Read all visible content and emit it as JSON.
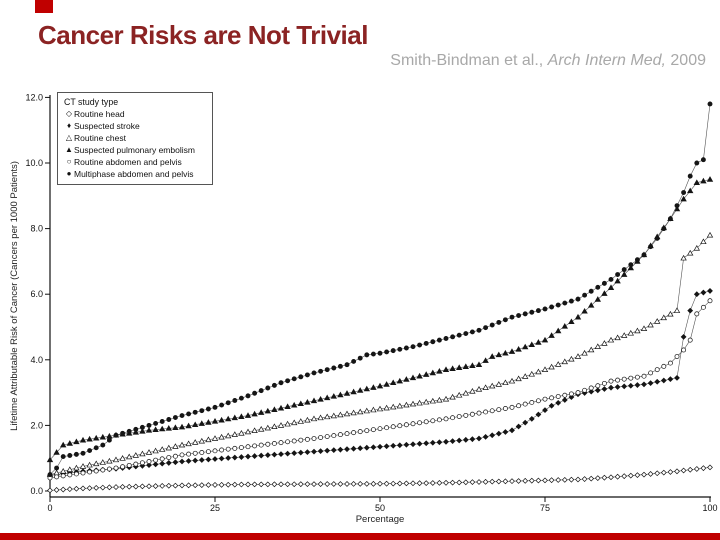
{
  "slide": {
    "title": "Cancer Risks are Not Trivial",
    "title_color": "#8b2323",
    "accent_color": "#c00000",
    "citation": {
      "prefix": "Smith-Bindman et al., ",
      "journal_italic": "Arch Intern Med,",
      "year": " 2009"
    }
  },
  "chart_data": {
    "type": "scatter",
    "title": "",
    "xlabel": "Percentage",
    "ylabel": "Lifetime Attributable Risk of Cancer (Cancers per 1000 Patients)",
    "xlim": [
      0,
      100
    ],
    "ylim": [
      0,
      12
    ],
    "grid": false,
    "legend_title": "CT study type",
    "legend_position": "top-left",
    "x_ticks": [
      {
        "label": "0",
        "value": 0
      },
      {
        "label": "25",
        "value": 25
      },
      {
        "label": "50",
        "value": 50
      },
      {
        "label": "75",
        "value": 75
      },
      {
        "label": "100",
        "value": 100
      }
    ],
    "y_ticks": [
      {
        "label": "12.0",
        "value": 12
      },
      {
        "label": "10.0",
        "value": 10
      },
      {
        "label": "8.0",
        "value": 8
      },
      {
        "label": "6.0",
        "value": 6
      },
      {
        "label": "4.0",
        "value": 4
      },
      {
        "label": "2.0",
        "value": 2
      },
      {
        "label": "0.0",
        "value": 0
      }
    ],
    "series_note": "x = percentage of patients (percentile), y = lifetime attributable risk of cancer per 1000 patients; points are estimates read from the plotted distribution curves",
    "series": [
      {
        "id": "routine-head",
        "name": "Routine head",
        "marker": "diamond",
        "filled": false,
        "glyph": "◇",
        "points": [
          [
            0,
            0.02
          ],
          [
            5,
            0.08
          ],
          [
            10,
            0.12
          ],
          [
            20,
            0.17
          ],
          [
            30,
            0.2
          ],
          [
            40,
            0.21
          ],
          [
            50,
            0.22
          ],
          [
            60,
            0.25
          ],
          [
            70,
            0.3
          ],
          [
            80,
            0.35
          ],
          [
            85,
            0.42
          ],
          [
            90,
            0.5
          ],
          [
            95,
            0.6
          ],
          [
            100,
            0.72
          ]
        ]
      },
      {
        "id": "suspected-stroke",
        "name": "Suspected stroke",
        "marker": "diamond",
        "filled": true,
        "glyph": "♦",
        "points": [
          [
            0,
            0.48
          ],
          [
            5,
            0.6
          ],
          [
            10,
            0.68
          ],
          [
            20,
            0.9
          ],
          [
            30,
            1.05
          ],
          [
            40,
            1.2
          ],
          [
            50,
            1.35
          ],
          [
            60,
            1.5
          ],
          [
            65,
            1.6
          ],
          [
            70,
            1.85
          ],
          [
            73,
            2.2
          ],
          [
            76,
            2.6
          ],
          [
            80,
            2.95
          ],
          [
            85,
            3.15
          ],
          [
            90,
            3.25
          ],
          [
            95,
            3.45
          ],
          [
            96,
            4.7
          ],
          [
            97,
            5.5
          ],
          [
            98,
            6.0
          ],
          [
            100,
            6.1
          ]
        ]
      },
      {
        "id": "routine-chest",
        "name": "Routine chest",
        "marker": "triangle",
        "filled": false,
        "glyph": "△",
        "points": [
          [
            0,
            0.5
          ],
          [
            5,
            0.75
          ],
          [
            10,
            0.95
          ],
          [
            20,
            1.4
          ],
          [
            30,
            1.8
          ],
          [
            40,
            2.2
          ],
          [
            50,
            2.5
          ],
          [
            60,
            2.8
          ],
          [
            65,
            3.1
          ],
          [
            70,
            3.35
          ],
          [
            75,
            3.7
          ],
          [
            80,
            4.1
          ],
          [
            85,
            4.6
          ],
          [
            90,
            4.95
          ],
          [
            95,
            5.5
          ],
          [
            96,
            7.1
          ],
          [
            98,
            7.4
          ],
          [
            100,
            7.8
          ]
        ]
      },
      {
        "id": "suspected-pulmonary-embolism",
        "name": "Suspected pulmonary embolism",
        "marker": "triangle",
        "filled": true,
        "glyph": "▲",
        "points": [
          [
            0,
            0.95
          ],
          [
            2,
            1.4
          ],
          [
            5,
            1.55
          ],
          [
            10,
            1.7
          ],
          [
            15,
            1.85
          ],
          [
            20,
            1.95
          ],
          [
            30,
            2.3
          ],
          [
            40,
            2.75
          ],
          [
            50,
            3.2
          ],
          [
            60,
            3.7
          ],
          [
            65,
            3.85
          ],
          [
            67,
            4.1
          ],
          [
            70,
            4.25
          ],
          [
            75,
            4.6
          ],
          [
            80,
            5.3
          ],
          [
            85,
            6.2
          ],
          [
            90,
            7.2
          ],
          [
            94,
            8.3
          ],
          [
            96,
            8.9
          ],
          [
            98,
            9.4
          ],
          [
            100,
            9.5
          ]
        ]
      },
      {
        "id": "routine-abdomen-pelvis",
        "name": "Routine abdomen and pelvis",
        "marker": "circle",
        "filled": false,
        "glyph": "○",
        "points": [
          [
            0,
            0.4
          ],
          [
            5,
            0.55
          ],
          [
            10,
            0.7
          ],
          [
            20,
            1.1
          ],
          [
            30,
            1.35
          ],
          [
            40,
            1.6
          ],
          [
            50,
            1.9
          ],
          [
            60,
            2.2
          ],
          [
            70,
            2.55
          ],
          [
            75,
            2.8
          ],
          [
            80,
            3.0
          ],
          [
            85,
            3.35
          ],
          [
            90,
            3.5
          ],
          [
            94,
            3.9
          ],
          [
            96,
            4.3
          ],
          [
            97,
            4.6
          ],
          [
            98,
            5.4
          ],
          [
            100,
            5.8
          ]
        ]
      },
      {
        "id": "multiphase-abdomen-pelvis",
        "name": "Multiphase abdomen and pelvis",
        "marker": "circle",
        "filled": true,
        "glyph": "●",
        "points": [
          [
            0,
            0.5
          ],
          [
            1,
            0.7
          ],
          [
            2,
            1.05
          ],
          [
            5,
            1.15
          ],
          [
            8,
            1.4
          ],
          [
            10,
            1.7
          ],
          [
            15,
            2.0
          ],
          [
            20,
            2.3
          ],
          [
            25,
            2.55
          ],
          [
            30,
            2.9
          ],
          [
            35,
            3.3
          ],
          [
            40,
            3.6
          ],
          [
            45,
            3.85
          ],
          [
            48,
            4.15
          ],
          [
            50,
            4.2
          ],
          [
            55,
            4.4
          ],
          [
            60,
            4.65
          ],
          [
            65,
            4.9
          ],
          [
            70,
            5.3
          ],
          [
            75,
            5.55
          ],
          [
            80,
            5.85
          ],
          [
            85,
            6.45
          ],
          [
            88,
            6.9
          ],
          [
            90,
            7.2
          ],
          [
            92,
            7.7
          ],
          [
            94,
            8.3
          ],
          [
            96,
            9.1
          ],
          [
            97,
            9.6
          ],
          [
            98,
            10.0
          ],
          [
            99,
            10.1
          ],
          [
            100,
            11.8
          ]
        ]
      }
    ]
  }
}
